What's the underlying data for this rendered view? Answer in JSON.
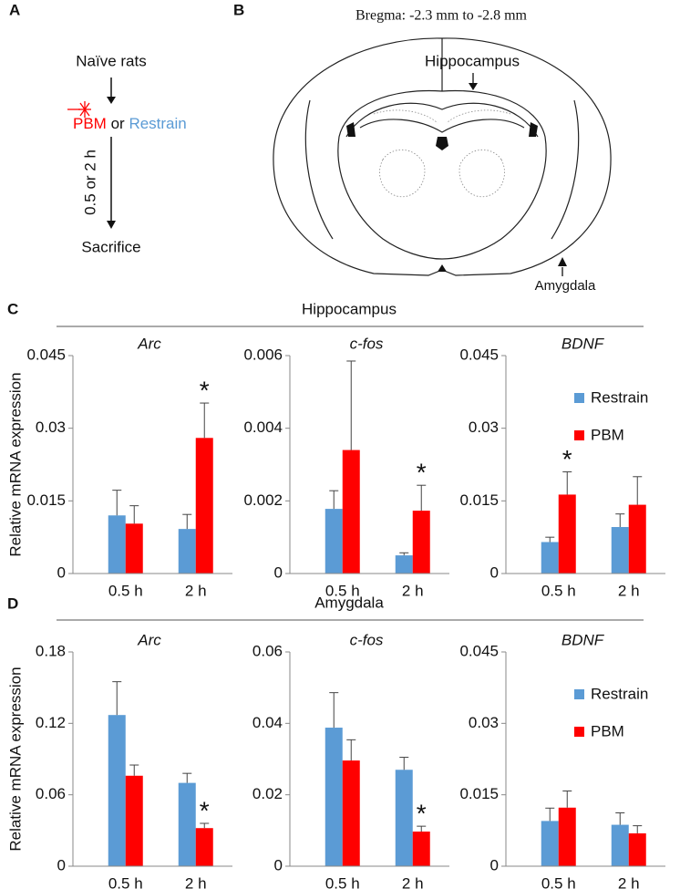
{
  "figure": {
    "panel_labels": [
      "A",
      "B",
      "C",
      "D"
    ],
    "flow": {
      "start": "Naïve rats",
      "pbm": "PBM",
      "or": "or",
      "restrain": "Restrain",
      "interval": "0.5 or 2 h",
      "end": "Sacrifice"
    },
    "atlas": {
      "title": "Bregma: -2.3 mm to -2.8 mm",
      "labels": [
        "Hippocampus",
        "Amygdala"
      ]
    },
    "sections": [
      "Hippocampus",
      "Amygdala"
    ]
  },
  "chart_data": [
    {
      "type": "bar",
      "title": "Arc",
      "ylabel": "Relative mRNA expression",
      "categories": [
        "0.5 h",
        "2 h"
      ],
      "series": [
        {
          "name": "Restrain",
          "color": "#5b9bd5",
          "values": [
            0.012,
            0.0092
          ],
          "errors": [
            0.0052,
            0.003
          ]
        },
        {
          "name": "PBM",
          "color": "#ff0000",
          "values": [
            0.0103,
            0.028
          ],
          "errors": [
            0.0037,
            0.0072
          ]
        }
      ],
      "ylim": [
        0,
        0.045
      ],
      "yticks": [
        0,
        0.015,
        0.03,
        0.045
      ],
      "annotations": [
        {
          "text": "*",
          "series": 1,
          "index": 1
        }
      ]
    },
    {
      "type": "bar",
      "title": "c-fos",
      "categories": [
        "0.5 h",
        "2 h"
      ],
      "series": [
        {
          "name": "Restrain",
          "color": "#5b9bd5",
          "values": [
            0.00178,
            0.0005
          ],
          "errors": [
            0.0005,
            7e-05
          ]
        },
        {
          "name": "PBM",
          "color": "#ff0000",
          "values": [
            0.0034,
            0.00173
          ],
          "errors": [
            0.00245,
            0.0007
          ]
        }
      ],
      "ylim": [
        0,
        0.006
      ],
      "yticks": [
        0,
        0.002,
        0.004,
        0.006
      ],
      "annotations": [
        {
          "text": "*",
          "series": 1,
          "index": 1
        }
      ]
    },
    {
      "type": "bar",
      "title": "BDNF",
      "categories": [
        "0.5 h",
        "2 h"
      ],
      "series": [
        {
          "name": "Restrain",
          "color": "#5b9bd5",
          "values": [
            0.0065,
            0.0096
          ],
          "errors": [
            0.001,
            0.0027
          ]
        },
        {
          "name": "PBM",
          "color": "#ff0000",
          "values": [
            0.0163,
            0.0142
          ],
          "errors": [
            0.0047,
            0.0058
          ]
        }
      ],
      "ylim": [
        0,
        0.045
      ],
      "yticks": [
        0,
        0.015,
        0.03,
        0.045
      ],
      "legend": "upper right",
      "annotations": [
        {
          "text": "*",
          "series": 1,
          "index": 0
        }
      ]
    },
    {
      "type": "bar",
      "title": "Arc",
      "ylabel": "Relative mRNA expression",
      "categories": [
        "0.5 h",
        "2 h"
      ],
      "series": [
        {
          "name": "Restrain",
          "color": "#5b9bd5",
          "values": [
            0.127,
            0.07
          ],
          "errors": [
            0.028,
            0.008
          ]
        },
        {
          "name": "PBM",
          "color": "#ff0000",
          "values": [
            0.076,
            0.032
          ],
          "errors": [
            0.009,
            0.004
          ]
        }
      ],
      "ylim": [
        0,
        0.18
      ],
      "yticks": [
        0,
        0.06,
        0.12,
        0.18
      ],
      "annotations": [
        {
          "text": "*",
          "series": 1,
          "index": 1
        }
      ]
    },
    {
      "type": "bar",
      "title": "c-fos",
      "categories": [
        "0.5 h",
        "2 h"
      ],
      "series": [
        {
          "name": "Restrain",
          "color": "#5b9bd5",
          "values": [
            0.0388,
            0.027
          ],
          "errors": [
            0.0098,
            0.0035
          ]
        },
        {
          "name": "PBM",
          "color": "#ff0000",
          "values": [
            0.0296,
            0.0097
          ],
          "errors": [
            0.0058,
            0.0015
          ]
        }
      ],
      "ylim": [
        0,
        0.06
      ],
      "yticks": [
        0,
        0.02,
        0.04,
        0.06
      ],
      "annotations": [
        {
          "text": "*",
          "series": 1,
          "index": 1
        }
      ]
    },
    {
      "type": "bar",
      "title": "BDNF",
      "categories": [
        "0.5 h",
        "2 h"
      ],
      "series": [
        {
          "name": "Restrain",
          "color": "#5b9bd5",
          "values": [
            0.0095,
            0.0087
          ],
          "errors": [
            0.0027,
            0.0025
          ]
        },
        {
          "name": "PBM",
          "color": "#ff0000",
          "values": [
            0.0123,
            0.0069
          ],
          "errors": [
            0.0035,
            0.0016
          ]
        }
      ],
      "ylim": [
        0,
        0.045
      ],
      "yticks": [
        0,
        0.015,
        0.03,
        0.045
      ],
      "legend": "upper right"
    }
  ]
}
